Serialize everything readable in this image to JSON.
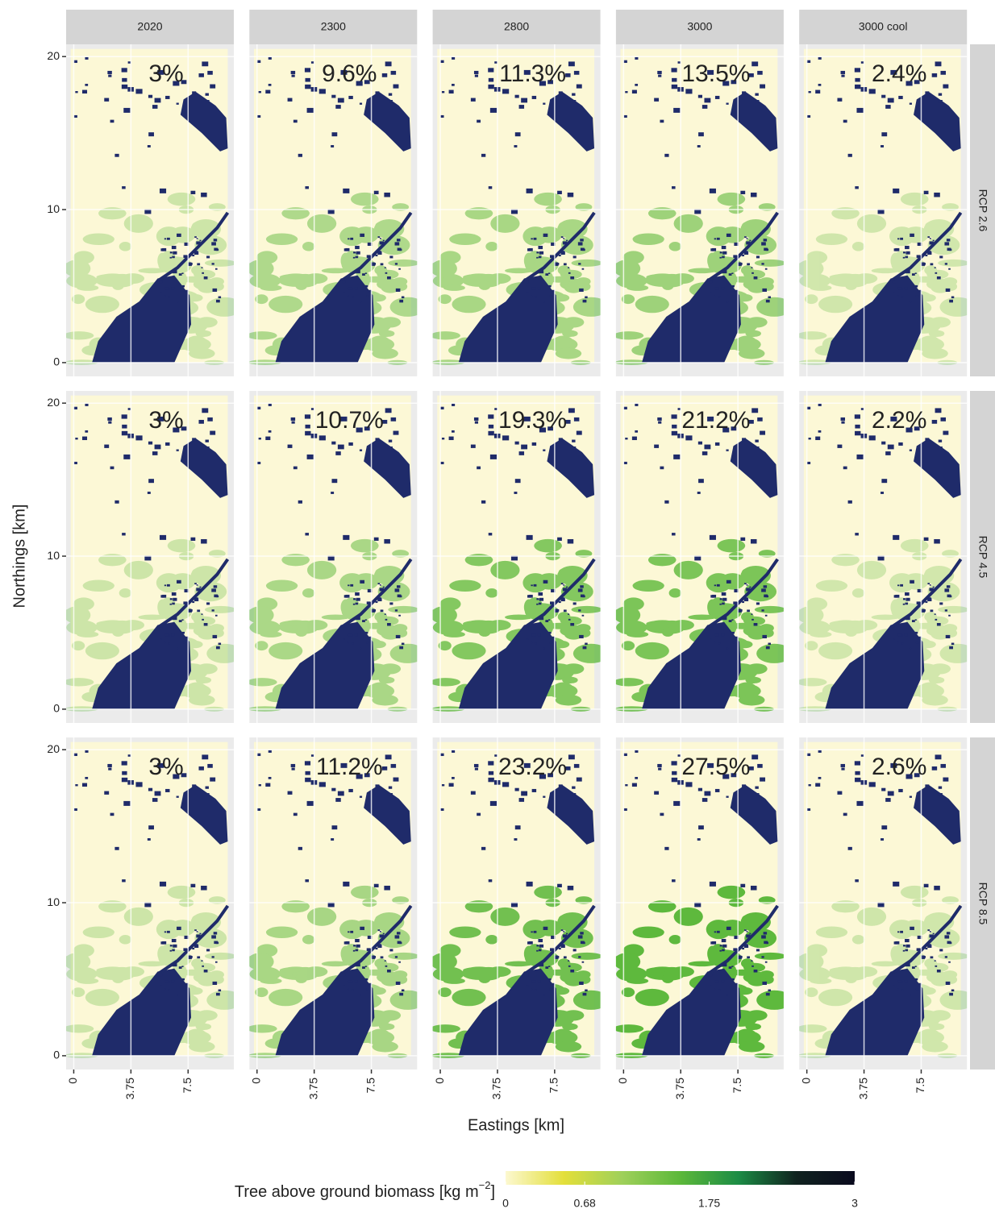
{
  "chart_data": {
    "type": "raster-facets",
    "x_label": "Eastings [km]",
    "y_label": "Northings [km]",
    "columns": [
      "2020",
      "2300",
      "2800",
      "3000",
      "3000 cool"
    ],
    "rows": [
      "RCP 2.6",
      "RCP 4.5",
      "RCP 8.5"
    ],
    "values": [
      [
        3,
        9.6,
        11.3,
        13.5,
        2.4
      ],
      [
        3,
        10.7,
        19.3,
        21.2,
        2.2
      ],
      [
        3,
        11.2,
        23.2,
        27.5,
        2.6
      ]
    ],
    "value_labels": [
      [
        "3%",
        "9.6%",
        "11.3%",
        "13.5%",
        "2.4%"
      ],
      [
        "3%",
        "10.7%",
        "19.3%",
        "21.2%",
        "2.2%"
      ],
      [
        "3%",
        "11.2%",
        "23.2%",
        "27.5%",
        "2.6%"
      ]
    ],
    "xlim": [
      -0.5,
      10.5
    ],
    "xticks": [
      0,
      3.75,
      7.5
    ],
    "ylim": [
      -0.9,
      20.8
    ],
    "yticks": [
      0,
      10,
      20
    ],
    "grid": true,
    "water_color": "#1f2b6a",
    "background_color": "#fcf8d6",
    "vegetation_color": "#5cb83a",
    "legend": {
      "title": "Tree above ground biomass [kg m",
      "title_sup": "−2",
      "title_end": "]",
      "clim": [
        0,
        3
      ],
      "ticks": [
        0,
        0.68,
        1.75,
        3
      ],
      "colors": [
        "#fcf8d0",
        "#e3df3a",
        "#9fd05a",
        "#5cb83a",
        "#1c8c45",
        "#10221f",
        "#0a0a1e"
      ]
    }
  }
}
